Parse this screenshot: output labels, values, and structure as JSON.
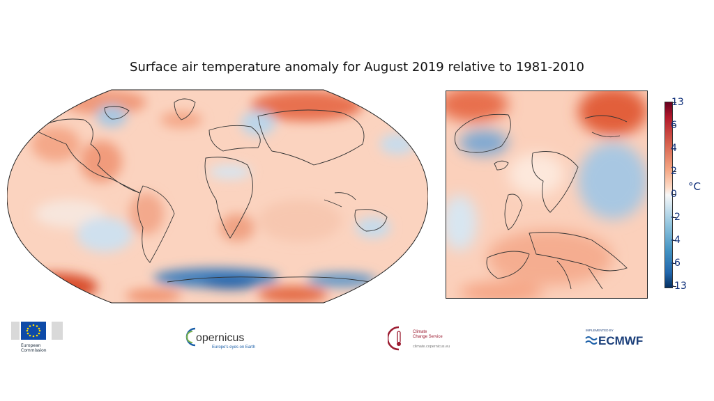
{
  "title": "Surface air temperature anomaly for August 2019 relative to 1981-2010",
  "colorbar": {
    "unit": "°C",
    "ticks": [
      "13",
      "6",
      "4",
      "2",
      "0",
      "-2",
      "-4",
      "-6",
      "-13"
    ],
    "colors": [
      "#67001f",
      "#b2182b",
      "#d6604d",
      "#f4a582",
      "#fddbc7",
      "#f7f7f7",
      "#d1e5f0",
      "#92c5de",
      "#4393c3",
      "#2166ac",
      "#053061"
    ]
  },
  "logos": {
    "eu": {
      "line1": "European",
      "line2": "Commission"
    },
    "copernicus": {
      "name": "opernicus",
      "tagline": "Europe's eyes on Earth"
    },
    "c3s": {
      "line1": "Climate",
      "line2": "Change Service",
      "url": "climate.copernicus.eu"
    },
    "ecmwf": {
      "implemented": "IMPLEMENTED BY",
      "name": "ECMWF"
    }
  }
}
